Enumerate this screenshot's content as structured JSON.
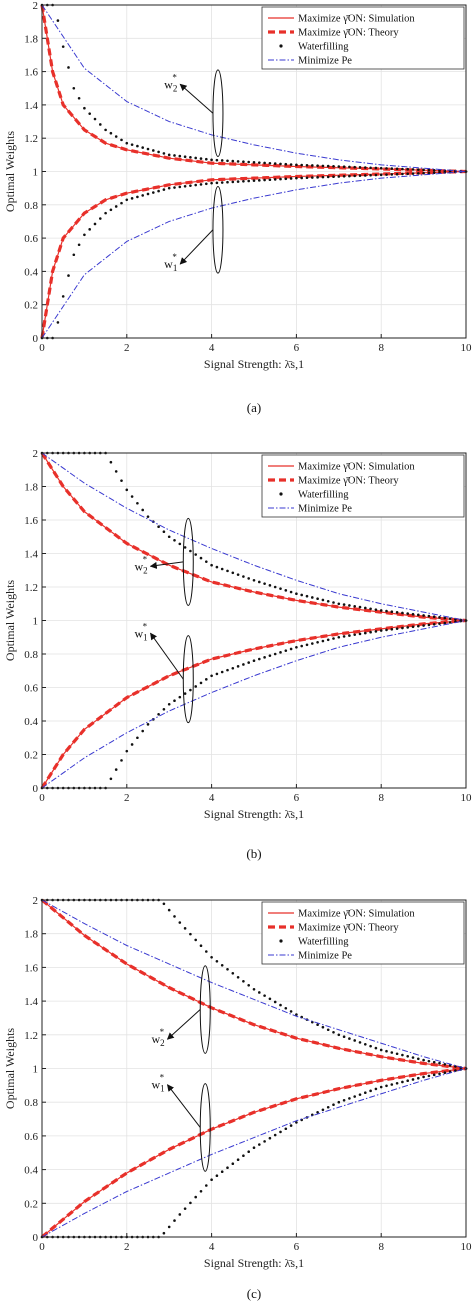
{
  "chart_data": [
    {
      "type": "line",
      "caption": "(a)",
      "xlabel": "Signal Strength: λ̄s,1",
      "ylabel": "Optimal Weights",
      "xlim": [
        0,
        10
      ],
      "ylim": [
        0,
        2
      ],
      "xticks": [
        "0",
        "2",
        "4",
        "6",
        "8",
        "10"
      ],
      "yticks": [
        "0",
        "0.2",
        "0.4",
        "0.6",
        "0.8",
        "1",
        "1.2",
        "1.4",
        "1.6",
        "1.8",
        "2"
      ],
      "grid": true,
      "legend_position": "top-right",
      "legend": [
        "Maximize γ̄ON: Simulation",
        "Maximize γ̄ON: Theory",
        "Waterfilling",
        "Minimize Pe"
      ],
      "series": [
        {
          "name": "Maximize γ̄ON: Simulation",
          "x": [
            0,
            0.25,
            0.5,
            1,
            1.5,
            2,
            3,
            4,
            6,
            8,
            10
          ],
          "w2": [
            2,
            1.6,
            1.4,
            1.25,
            1.17,
            1.13,
            1.08,
            1.05,
            1.03,
            1.015,
            1
          ],
          "w1": [
            0,
            0.4,
            0.6,
            0.75,
            0.83,
            0.87,
            0.92,
            0.95,
            0.97,
            0.985,
            1
          ]
        },
        {
          "name": "Maximize γ̄ON: Theory",
          "x": [
            0,
            0.25,
            0.5,
            1,
            1.5,
            2,
            3,
            4,
            6,
            8,
            10
          ],
          "w2": [
            2,
            1.6,
            1.4,
            1.25,
            1.17,
            1.13,
            1.08,
            1.05,
            1.03,
            1.015,
            1
          ],
          "w1": [
            0,
            0.4,
            0.6,
            0.75,
            0.83,
            0.87,
            0.92,
            0.95,
            0.97,
            0.985,
            1
          ]
        },
        {
          "name": "Waterfilling",
          "x": [
            0,
            0.3,
            0.5,
            0.75,
            1,
            1.5,
            2,
            3,
            4,
            6,
            8,
            10
          ],
          "w2": [
            2,
            2,
            1.75,
            1.5,
            1.38,
            1.25,
            1.17,
            1.1,
            1.07,
            1.04,
            1.02,
            1
          ],
          "w1": [
            0,
            0,
            0.25,
            0.5,
            0.62,
            0.75,
            0.83,
            0.9,
            0.93,
            0.96,
            0.98,
            1
          ]
        },
        {
          "name": "Minimize Pe",
          "x": [
            0,
            1,
            2,
            3,
            4,
            5,
            6,
            7,
            8,
            9,
            10
          ],
          "w2": [
            2,
            1.62,
            1.42,
            1.3,
            1.22,
            1.16,
            1.11,
            1.07,
            1.04,
            1.02,
            1
          ],
          "w1": [
            0,
            0.38,
            0.58,
            0.7,
            0.78,
            0.84,
            0.89,
            0.93,
            0.96,
            0.98,
            1
          ]
        }
      ],
      "annotations": {
        "w2": {
          "label": "w",
          "sub": "2",
          "sup": "*",
          "x": 3.4,
          "y": 1.5
        },
        "w1": {
          "label": "w",
          "sub": "1",
          "sup": "*",
          "x": 3.4,
          "y": 0.42
        }
      }
    },
    {
      "type": "line",
      "caption": "(b)",
      "xlabel": "Signal Strength: λ̄s,1",
      "ylabel": "Optimal Weights",
      "xlim": [
        0,
        10
      ],
      "ylim": [
        0,
        2
      ],
      "xticks": [
        "0",
        "2",
        "4",
        "6",
        "8",
        "10"
      ],
      "yticks": [
        "0",
        "0.2",
        "0.4",
        "0.6",
        "0.8",
        "1",
        "1.2",
        "1.4",
        "1.6",
        "1.8",
        "2"
      ],
      "grid": true,
      "legend_position": "top-right",
      "legend": [
        "Maximize γ̄ON: Simulation",
        "Maximize γ̄ON: Theory",
        "Waterfilling",
        "Minimize Pe"
      ],
      "series": [
        {
          "name": "Maximize γ̄ON: Simulation",
          "x": [
            0,
            0.5,
            1,
            2,
            3,
            4,
            5,
            6,
            7,
            8,
            9,
            10
          ],
          "w2": [
            2,
            1.8,
            1.65,
            1.46,
            1.33,
            1.23,
            1.17,
            1.12,
            1.08,
            1.05,
            1.02,
            1
          ],
          "w1": [
            0,
            0.2,
            0.35,
            0.54,
            0.67,
            0.77,
            0.83,
            0.88,
            0.92,
            0.95,
            0.98,
            1
          ]
        },
        {
          "name": "Maximize γ̄ON: Theory",
          "x": [
            0,
            0.5,
            1,
            2,
            3,
            4,
            5,
            6,
            7,
            8,
            9,
            10
          ],
          "w2": [
            2,
            1.8,
            1.65,
            1.46,
            1.33,
            1.23,
            1.17,
            1.12,
            1.08,
            1.05,
            1.02,
            1
          ],
          "w1": [
            0,
            0.2,
            0.35,
            0.54,
            0.67,
            0.77,
            0.83,
            0.88,
            0.92,
            0.95,
            0.98,
            1
          ]
        },
        {
          "name": "Waterfilling",
          "x": [
            0,
            0.5,
            1,
            1.5,
            2,
            2.5,
            3,
            4,
            5,
            6,
            7,
            8,
            9,
            10
          ],
          "w2": [
            2,
            2,
            2,
            2,
            1.78,
            1.62,
            1.5,
            1.33,
            1.24,
            1.16,
            1.1,
            1.06,
            1.03,
            1
          ],
          "w1": [
            0,
            0,
            0,
            0,
            0.22,
            0.38,
            0.5,
            0.67,
            0.76,
            0.84,
            0.9,
            0.94,
            0.97,
            1
          ]
        },
        {
          "name": "Minimize Pe",
          "x": [
            0,
            1,
            2,
            3,
            4,
            5,
            6,
            7,
            8,
            9,
            10
          ],
          "w2": [
            2,
            1.82,
            1.67,
            1.54,
            1.43,
            1.33,
            1.24,
            1.16,
            1.1,
            1.05,
            1
          ],
          "w1": [
            0,
            0.18,
            0.33,
            0.46,
            0.57,
            0.67,
            0.76,
            0.84,
            0.9,
            0.95,
            1
          ]
        }
      ],
      "annotations": {
        "w2": {
          "label": "w",
          "sub": "2",
          "sup": "*",
          "x": 2.7,
          "y": 1.3
        },
        "w1": {
          "label": "w",
          "sub": "1",
          "sup": "*",
          "x": 2.7,
          "y": 0.9
        }
      }
    },
    {
      "type": "line",
      "caption": "(c)",
      "xlabel": "Signal Strength: λ̄s,1",
      "ylabel": "Optimal Weights",
      "xlim": [
        0,
        10
      ],
      "ylim": [
        0,
        2
      ],
      "xticks": [
        "0",
        "2",
        "4",
        "6",
        "8",
        "10"
      ],
      "yticks": [
        "0",
        "0.2",
        "0.4",
        "0.6",
        "0.8",
        "1",
        "1.2",
        "1.4",
        "1.6",
        "1.8",
        "2"
      ],
      "grid": true,
      "legend_position": "top-right",
      "legend": [
        "Maximize γ̄ON: Simulation",
        "Maximize γ̄ON: Theory",
        "Waterfilling",
        "Minimize Pe"
      ],
      "series": [
        {
          "name": "Maximize γ̄ON: Simulation",
          "x": [
            0,
            1,
            2,
            3,
            4,
            5,
            6,
            7,
            8,
            9,
            10
          ],
          "w2": [
            2,
            1.79,
            1.62,
            1.48,
            1.36,
            1.26,
            1.18,
            1.12,
            1.07,
            1.03,
            1
          ],
          "w1": [
            0,
            0.21,
            0.38,
            0.52,
            0.64,
            0.74,
            0.82,
            0.88,
            0.93,
            0.97,
            1
          ]
        },
        {
          "name": "Maximize γ̄ON: Theory",
          "x": [
            0,
            1,
            2,
            3,
            4,
            5,
            6,
            7,
            8,
            9,
            10
          ],
          "w2": [
            2,
            1.79,
            1.62,
            1.48,
            1.36,
            1.26,
            1.18,
            1.12,
            1.07,
            1.03,
            1
          ],
          "w1": [
            0,
            0.21,
            0.38,
            0.52,
            0.64,
            0.74,
            0.82,
            0.88,
            0.93,
            0.97,
            1
          ]
        },
        {
          "name": "Waterfilling",
          "x": [
            0,
            1,
            2,
            2.8,
            3.2,
            4,
            5,
            6,
            7,
            8,
            9,
            10
          ],
          "w2": [
            2,
            2,
            2,
            2,
            1.88,
            1.66,
            1.47,
            1.32,
            1.2,
            1.11,
            1.05,
            1
          ],
          "w1": [
            0,
            0,
            0,
            0,
            0.12,
            0.34,
            0.53,
            0.68,
            0.8,
            0.89,
            0.95,
            1
          ]
        },
        {
          "name": "Minimize Pe",
          "x": [
            0,
            1,
            2,
            3,
            4,
            5,
            6,
            7,
            8,
            9,
            10
          ],
          "w2": [
            2,
            1.86,
            1.73,
            1.62,
            1.51,
            1.41,
            1.31,
            1.23,
            1.15,
            1.07,
            1
          ],
          "w1": [
            0,
            0.14,
            0.27,
            0.38,
            0.49,
            0.59,
            0.69,
            0.77,
            0.85,
            0.93,
            1
          ]
        }
      ],
      "annotations": {
        "w2": {
          "label": "w",
          "sub": "2",
          "sup": "*",
          "x": 3.1,
          "y": 1.15
        },
        "w1": {
          "label": "w",
          "sub": "1",
          "sup": "*",
          "x": 3.1,
          "y": 0.88
        }
      }
    }
  ]
}
